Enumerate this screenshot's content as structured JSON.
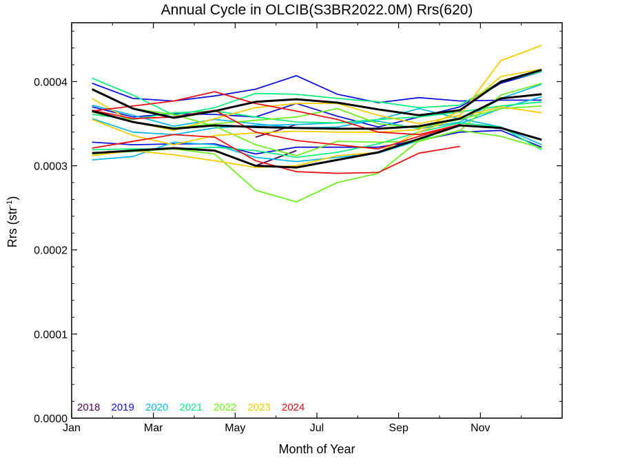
{
  "chart_data": {
    "type": "line",
    "title": "Annual Cycle in OLCIB(S3BR2022.0M) Rrs(620)",
    "xlabel": "Month of Year",
    "ylabel_main": "Rrs (str",
    "ylabel_sup": "-1",
    "ylabel_close": ")",
    "xlim": [
      0,
      12
    ],
    "ylim": [
      0,
      0.00047
    ],
    "x_ticks": [
      {
        "value": 0,
        "label": "Jan"
      },
      {
        "value": 2,
        "label": "Mar"
      },
      {
        "value": 4,
        "label": "May"
      },
      {
        "value": 6,
        "label": "Jul"
      },
      {
        "value": 8,
        "label": "Sep"
      },
      {
        "value": 10,
        "label": "Nov"
      }
    ],
    "y_ticks": [
      {
        "value": 0,
        "label": "0.0000"
      },
      {
        "value": 0.0001,
        "label": "0.0001"
      },
      {
        "value": 0.0002,
        "label": "0.0002"
      },
      {
        "value": 0.0003,
        "label": "0.0003"
      },
      {
        "value": 0.0004,
        "label": "0.0004"
      }
    ],
    "x": [
      0.5,
      1.5,
      2.5,
      3.5,
      4.5,
      5.5,
      6.5,
      7.5,
      8.5,
      9.5,
      10.5,
      11.5
    ],
    "legend": [
      {
        "label": "2018",
        "color": "#55005f"
      },
      {
        "label": "2019",
        "color": "#1010dd"
      },
      {
        "label": "2020",
        "color": "#10b8ee"
      },
      {
        "label": "2021",
        "color": "#10ee80"
      },
      {
        "label": "2022",
        "color": "#6ef020"
      },
      {
        "label": "2023",
        "color": "#f5cc00"
      },
      {
        "label": "2024",
        "color": "#ee1010"
      }
    ],
    "series": [
      {
        "color": "#55005f",
        "values": [
          null,
          null,
          null,
          null,
          0.000334,
          0.000349,
          null,
          null,
          null,
          null,
          null,
          null
        ]
      },
      {
        "color": "#55005f",
        "values": [
          null,
          null,
          null,
          null,
          0.0003,
          0.000318,
          null,
          null,
          null,
          null,
          null,
          null
        ]
      },
      {
        "color": "#1010dd",
        "values": [
          0.000398,
          0.00038,
          0.000377,
          0.000383,
          0.000391,
          0.000407,
          0.000385,
          0.000375,
          0.000381,
          0.000377,
          0.000378,
          0.000378
        ]
      },
      {
        "color": "#1010dd",
        "values": [
          0.00037,
          0.000358,
          0.000362,
          0.000361,
          0.000358,
          0.000374,
          0.000359,
          0.000346,
          0.000358,
          0.00037,
          0.000398,
          0.000412
        ]
      },
      {
        "color": "#1010dd",
        "values": [
          0.000328,
          0.000325,
          0.000326,
          0.000326,
          0.000314,
          0.000322,
          0.000322,
          0.000322,
          0.00033,
          0.00034,
          0.000342,
          0.000322
        ]
      },
      {
        "color": "#10b8ee",
        "values": [
          0.000307,
          0.000311,
          0.000328,
          0.000325,
          0.00031,
          0.000305,
          0.00031,
          0.000315,
          0.00033,
          0.00035,
          0.000368,
          0.000382
        ]
      },
      {
        "color": "#10b8ee",
        "values": [
          0.000356,
          0.00034,
          0.000337,
          0.000345,
          0.000348,
          0.000349,
          0.000351,
          0.000353,
          0.000344,
          0.000352,
          0.00038,
          0.000397
        ]
      },
      {
        "color": "#10b8ee",
        "values": [
          0.000372,
          0.00036,
          0.000347,
          0.000355,
          0.00035,
          0.000345,
          0.000346,
          0.000355,
          0.000368,
          0.000356,
          0.000346,
          0.000325
        ]
      },
      {
        "color": "#10ee80",
        "values": [
          0.000404,
          0.000384,
          0.00036,
          0.000369,
          0.000386,
          0.000385,
          0.00038,
          0.000376,
          0.000369,
          0.000372,
          0.0004,
          0.000412
        ]
      },
      {
        "color": "#10ee80",
        "values": [
          0.000361,
          0.000355,
          0.000363,
          0.000365,
          0.000358,
          0.000352,
          0.000351,
          0.000355,
          0.000358,
          0.000364,
          0.000371,
          0.000376
        ]
      },
      {
        "color": "#10ee80",
        "values": [
          0.000319,
          0.00032,
          0.00032,
          0.000322,
          0.000318,
          0.00031,
          0.000316,
          0.000326,
          0.00034,
          0.000351,
          0.000346,
          0.000319
        ]
      },
      {
        "color": "#6ef020",
        "values": [
          0.00039,
          0.000368,
          0.000361,
          0.000347,
          0.000325,
          0.000312,
          0.000329,
          0.000328,
          0.000329,
          0.000342,
          0.000384,
          0.000398
        ]
      },
      {
        "color": "#6ef020",
        "values": [
          0.000364,
          0.000352,
          0.000345,
          0.00035,
          0.000354,
          0.000358,
          0.000368,
          0.00035,
          0.000345,
          0.000355,
          0.000368,
          0.000371
        ]
      },
      {
        "color": "#6ef020",
        "values": [
          0.000314,
          0.000317,
          0.00032,
          0.000314,
          0.000271,
          0.000257,
          0.00028,
          0.000291,
          0.00033,
          0.000342,
          0.000335,
          0.000321
        ]
      },
      {
        "color": "#f5cc00",
        "values": [
          0.00038,
          0.000352,
          0.000342,
          0.000356,
          0.000369,
          0.000374,
          0.000374,
          0.00036,
          0.00035,
          0.00036,
          0.000425,
          0.000443
        ]
      },
      {
        "color": "#f5cc00",
        "values": [
          0.000355,
          0.000336,
          0.000325,
          0.000336,
          0.000339,
          0.000341,
          0.00034,
          0.00034,
          0.000343,
          0.000365,
          0.000406,
          0.000415
        ]
      },
      {
        "color": "#f5cc00",
        "values": [
          0.000312,
          0.000318,
          0.000313,
          0.000306,
          0.000298,
          0.0003,
          0.000312,
          0.000316,
          0.00034,
          0.000358,
          0.00037,
          0.000363
        ]
      },
      {
        "color": "#ee1010",
        "values": [
          0.000365,
          0.000371,
          0.000377,
          0.000388,
          0.000374,
          0.000365,
          0.000355,
          0.00034,
          0.000337,
          0.000349,
          null,
          null
        ]
      },
      {
        "color": "#ee1010",
        "values": [
          0.000321,
          0.000329,
          0.000337,
          0.000334,
          0.000306,
          0.000293,
          0.000291,
          0.000292,
          0.000315,
          0.000323,
          null,
          null
        ]
      },
      {
        "color": "#ee1010",
        "values": [
          0.000366,
          0.000356,
          0.000358,
          0.000366,
          0.00034,
          0.00033,
          0.000325,
          0.00032,
          0.000335,
          0.000349,
          null,
          null
        ]
      },
      {
        "color": "#000000",
        "width": 3,
        "values": [
          0.000391,
          0.000368,
          0.000357,
          0.000365,
          0.000376,
          0.000379,
          0.000375,
          0.000367,
          0.00036,
          0.000366,
          0.0004,
          0.000414
        ]
      },
      {
        "color": "#000000",
        "width": 3,
        "values": [
          0.000365,
          0.000352,
          0.000344,
          0.000348,
          0.000346,
          0.000345,
          0.000344,
          0.000344,
          0.000347,
          0.000356,
          0.00038,
          0.000385
        ]
      },
      {
        "color": "#000000",
        "width": 3,
        "values": [
          0.000315,
          0.000318,
          0.000321,
          0.000318,
          0.0003,
          0.000298,
          0.000307,
          0.000316,
          0.000332,
          0.000348,
          0.000345,
          0.000331
        ]
      }
    ]
  }
}
